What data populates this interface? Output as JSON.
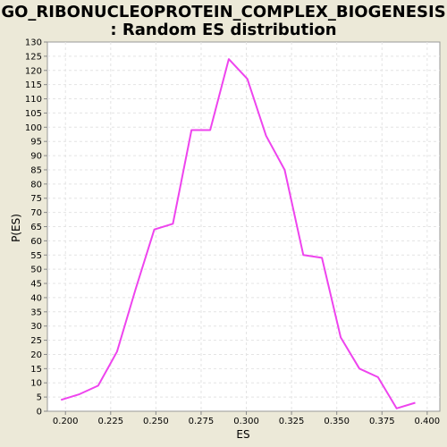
{
  "chart_data": {
    "type": "line",
    "title_line1": "GO_RIBONUCLEOPROTEIN_COMPLEX_BIOGENESIS",
    "title_line2": ": Random ES distribution",
    "xlabel": "ES",
    "ylabel": "P(ES)",
    "xlim": [
      0.19,
      0.407
    ],
    "ylim": [
      0,
      130
    ],
    "x_ticks": [
      "0.200",
      "0.225",
      "0.250",
      "0.275",
      "0.300",
      "0.325",
      "0.350",
      "0.375",
      "0.400"
    ],
    "y_ticks": [
      "0",
      "5",
      "10",
      "15",
      "20",
      "25",
      "30",
      "35",
      "40",
      "45",
      "50",
      "55",
      "60",
      "65",
      "70",
      "75",
      "80",
      "85",
      "90",
      "95",
      "100",
      "105",
      "110",
      "115",
      "120",
      "125",
      "130"
    ],
    "grid": true,
    "line_color": "#ee44ee",
    "series": [
      {
        "x": [
          0.1975,
          0.2078,
          0.2181,
          0.2285,
          0.2388,
          0.2491,
          0.2594,
          0.2697,
          0.28,
          0.2903,
          0.3006,
          0.3109,
          0.3212,
          0.3315,
          0.3418,
          0.3522,
          0.3625,
          0.3728,
          0.3831,
          0.3934
        ],
        "y": [
          4,
          6,
          9,
          21,
          43,
          64,
          66,
          99,
          99,
          124,
          117,
          97,
          85,
          55,
          54,
          26,
          15,
          12,
          1,
          3
        ]
      }
    ]
  }
}
